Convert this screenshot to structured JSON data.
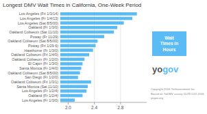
{
  "chart_data": {
    "type": "bar",
    "orientation": "horizontal",
    "title": "Longest DMV Wait Times in California, One-Week Period",
    "categories": [
      "Los Angeles\n(Fri 1/3/14)",
      "Los Angeles\n(Fr 1/4/13)",
      "Los Angeles\n(Sat 8/5/00)",
      "Oakland\n(Fr 1/3/0)",
      "Oakland Coliseum\n(Sat 11/10)",
      "Poway\n(Fr 11/29)",
      "Oakland Coliseum\n(Sat 8/5/00)",
      "Poway\n(Fri 1/29 6)",
      "Hawthorne\n(Fr 1/3/0)",
      "Oakland Coliseum\n(Fri 1/4/0)",
      "Oakland Coliseum\n(Fr 1/2/0)",
      "El Cajon\n(Fr 1/3/0)",
      "Santa Monica\n(Fr 1/4/0)",
      "Oakland Coliseum\n(Sat 8/5/00)",
      "San Diego\n(Fr 1/2/0)",
      "Oakland Coliseum\n(Fri 1/3/1)",
      "Santa Monica\n(Sat 11/10)",
      "Los Angeles\n(Fr 1/2/4)",
      "Oakland\n(Fr 1/2/4)",
      "Los Angeles\n(Fr 1/3/0)"
    ],
    "values": [
      3.05,
      2.98,
      2.85,
      2.75,
      2.7,
      2.55,
      2.45,
      2.42,
      2.38,
      2.32,
      2.25,
      2.22,
      2.2,
      2.18,
      2.15,
      2.35,
      2.3,
      2.28,
      2.22,
      2.1
    ],
    "color": "#5bbcf5",
    "xlim": [
      1.88,
      3.2
    ],
    "xticks": [
      {
        "value": 2.0,
        "label": "2.0"
      },
      2.4,
      2.8
    ],
    "grid": true,
    "annotations": [
      "Wait\nTimes in\nHours",
      "yo",
      "gov",
      "Copyright 2016 YoGovernment Inc.\nBased on YoDMV survey 11/29-12/2 2016\nyogov.org"
    ]
  }
}
